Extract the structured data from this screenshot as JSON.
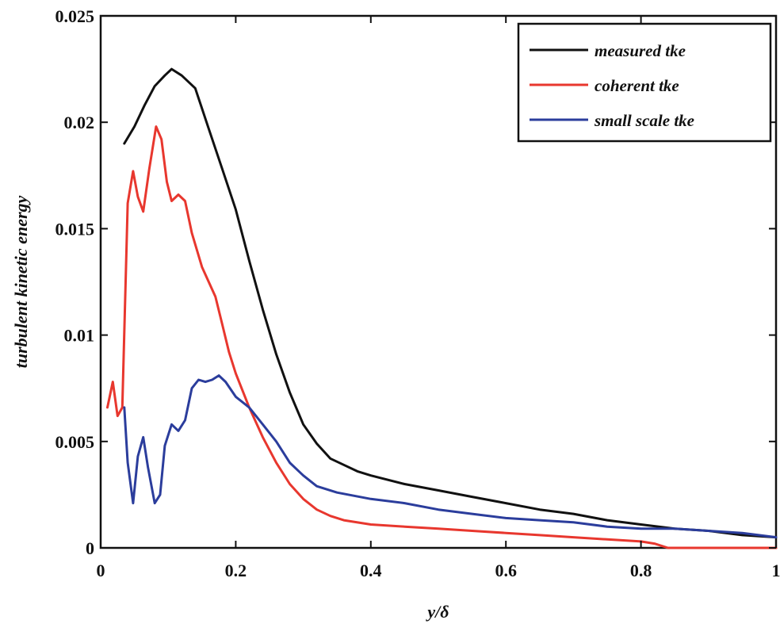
{
  "chart_data": {
    "type": "line",
    "title": "",
    "xlabel": "y/δ",
    "ylabel": "turbulent kinetic energy",
    "xlim": [
      0,
      1
    ],
    "ylim": [
      0,
      0.025
    ],
    "grid": false,
    "legend_position": "top-right",
    "x_ticks": [
      "0",
      "0.2",
      "0.4",
      "0.6",
      "0.8",
      "1"
    ],
    "y_ticks": [
      "0",
      "0.005",
      "0.01",
      "0.015",
      "0.02",
      "0.025"
    ],
    "series": [
      {
        "name": "measured tke",
        "color": "#111111",
        "points": [
          [
            0.035,
            0.019
          ],
          [
            0.05,
            0.0198
          ],
          [
            0.065,
            0.0208
          ],
          [
            0.08,
            0.0217
          ],
          [
            0.095,
            0.0222
          ],
          [
            0.105,
            0.0225
          ],
          [
            0.12,
            0.0222
          ],
          [
            0.14,
            0.0216
          ],
          [
            0.16,
            0.0197
          ],
          [
            0.18,
            0.0178
          ],
          [
            0.2,
            0.0159
          ],
          [
            0.22,
            0.0135
          ],
          [
            0.24,
            0.0112
          ],
          [
            0.26,
            0.0091
          ],
          [
            0.28,
            0.0073
          ],
          [
            0.3,
            0.0058
          ],
          [
            0.32,
            0.0049
          ],
          [
            0.34,
            0.0042
          ],
          [
            0.36,
            0.0039
          ],
          [
            0.38,
            0.0036
          ],
          [
            0.4,
            0.0034
          ],
          [
            0.45,
            0.003
          ],
          [
            0.5,
            0.0027
          ],
          [
            0.55,
            0.0024
          ],
          [
            0.6,
            0.0021
          ],
          [
            0.65,
            0.0018
          ],
          [
            0.7,
            0.0016
          ],
          [
            0.75,
            0.0013
          ],
          [
            0.8,
            0.0011
          ],
          [
            0.85,
            0.0009
          ],
          [
            0.9,
            0.0008
          ],
          [
            0.95,
            0.0006
          ],
          [
            1.0,
            0.0005
          ]
        ]
      },
      {
        "name": "coherent tke",
        "color": "#e8372e",
        "points": [
          [
            0.01,
            0.0066
          ],
          [
            0.018,
            0.0078
          ],
          [
            0.025,
            0.0062
          ],
          [
            0.032,
            0.0066
          ],
          [
            0.04,
            0.0162
          ],
          [
            0.048,
            0.0177
          ],
          [
            0.055,
            0.0165
          ],
          [
            0.063,
            0.0158
          ],
          [
            0.072,
            0.0178
          ],
          [
            0.082,
            0.0198
          ],
          [
            0.09,
            0.0192
          ],
          [
            0.098,
            0.0172
          ],
          [
            0.105,
            0.0163
          ],
          [
            0.115,
            0.0166
          ],
          [
            0.125,
            0.0163
          ],
          [
            0.135,
            0.0148
          ],
          [
            0.15,
            0.0132
          ],
          [
            0.17,
            0.0118
          ],
          [
            0.18,
            0.0105
          ],
          [
            0.19,
            0.0092
          ],
          [
            0.2,
            0.0082
          ],
          [
            0.22,
            0.0066
          ],
          [
            0.24,
            0.0052
          ],
          [
            0.26,
            0.004
          ],
          [
            0.28,
            0.003
          ],
          [
            0.3,
            0.0023
          ],
          [
            0.32,
            0.0018
          ],
          [
            0.34,
            0.0015
          ],
          [
            0.36,
            0.0013
          ],
          [
            0.4,
            0.0011
          ],
          [
            0.45,
            0.001
          ],
          [
            0.5,
            0.0009
          ],
          [
            0.55,
            0.0008
          ],
          [
            0.6,
            0.0007
          ],
          [
            0.65,
            0.0006
          ],
          [
            0.7,
            0.0005
          ],
          [
            0.75,
            0.0004
          ],
          [
            0.8,
            0.0003
          ],
          [
            0.82,
            0.0002
          ],
          [
            0.84,
            0.0
          ],
          [
            0.9,
            0.0
          ],
          [
            1.0,
            0.0
          ]
        ]
      },
      {
        "name": "small scale tke",
        "color": "#2b3d9c",
        "points": [
          [
            0.035,
            0.0066
          ],
          [
            0.04,
            0.004
          ],
          [
            0.048,
            0.0021
          ],
          [
            0.055,
            0.0043
          ],
          [
            0.063,
            0.0052
          ],
          [
            0.07,
            0.0038
          ],
          [
            0.08,
            0.0021
          ],
          [
            0.088,
            0.0025
          ],
          [
            0.095,
            0.0048
          ],
          [
            0.105,
            0.0058
          ],
          [
            0.115,
            0.0055
          ],
          [
            0.125,
            0.006
          ],
          [
            0.135,
            0.0075
          ],
          [
            0.145,
            0.0079
          ],
          [
            0.155,
            0.0078
          ],
          [
            0.165,
            0.0079
          ],
          [
            0.175,
            0.0081
          ],
          [
            0.185,
            0.0078
          ],
          [
            0.2,
            0.0071
          ],
          [
            0.22,
            0.0066
          ],
          [
            0.24,
            0.0058
          ],
          [
            0.26,
            0.005
          ],
          [
            0.28,
            0.004
          ],
          [
            0.3,
            0.0034
          ],
          [
            0.32,
            0.0029
          ],
          [
            0.35,
            0.0026
          ],
          [
            0.4,
            0.0023
          ],
          [
            0.45,
            0.0021
          ],
          [
            0.5,
            0.0018
          ],
          [
            0.55,
            0.0016
          ],
          [
            0.6,
            0.0014
          ],
          [
            0.65,
            0.0013
          ],
          [
            0.7,
            0.0012
          ],
          [
            0.75,
            0.001
          ],
          [
            0.8,
            0.0009
          ],
          [
            0.85,
            0.0009
          ],
          [
            0.9,
            0.0008
          ],
          [
            0.95,
            0.0007
          ],
          [
            1.0,
            0.0005
          ]
        ]
      }
    ]
  }
}
